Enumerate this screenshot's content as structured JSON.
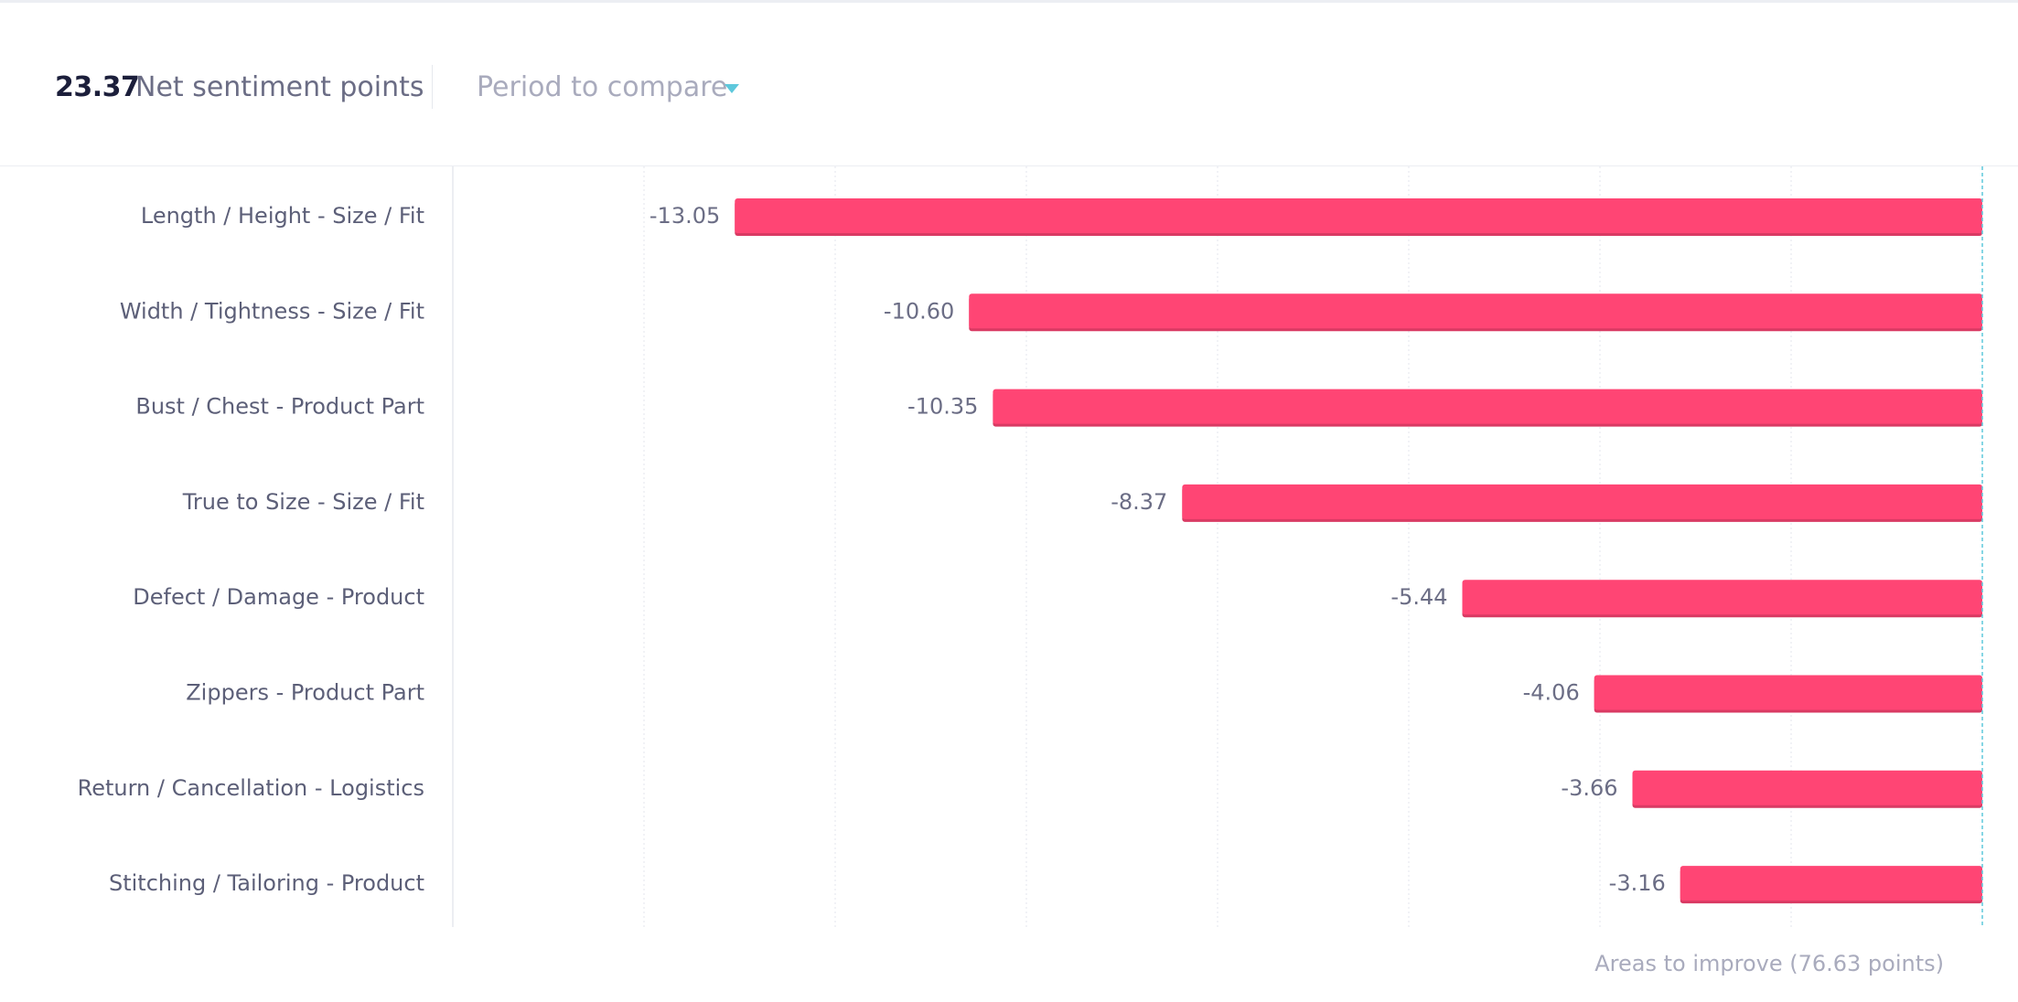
{
  "header": {
    "score": "23.37",
    "score_label": "Net sentiment points",
    "period_placeholder": "Period to compare"
  },
  "footer": {
    "note": "Areas to improve (76.63 points)"
  },
  "colors": {
    "bar": "#ff4574",
    "bar_shadow": "#d93a63",
    "grid": "#e3e5ec",
    "baseline": "#5ec8dc",
    "accent": "#5ec8dc"
  },
  "chart_data": {
    "type": "bar",
    "orientation": "horizontal",
    "categories": [
      "Length / Height - Size / Fit",
      "Width / Tightness - Size / Fit",
      "Bust / Chest - Product Part",
      "True to Size - Size / Fit",
      "Defect / Damage - Product",
      "Zippers - Product Part",
      "Return / Cancellation - Logistics",
      "Stitching / Tailoring - Product"
    ],
    "values": [
      -13.05,
      -10.6,
      -10.35,
      -8.37,
      -5.44,
      -4.06,
      -3.66,
      -3.16
    ],
    "value_labels": [
      "-13.05",
      "-10.60",
      "-10.35",
      "-8.37",
      "-5.44",
      "-4.06",
      "-3.66",
      "-3.16"
    ],
    "xlim": [
      -16,
      0
    ],
    "grid_step": 2,
    "grid": true,
    "legend": "none"
  }
}
